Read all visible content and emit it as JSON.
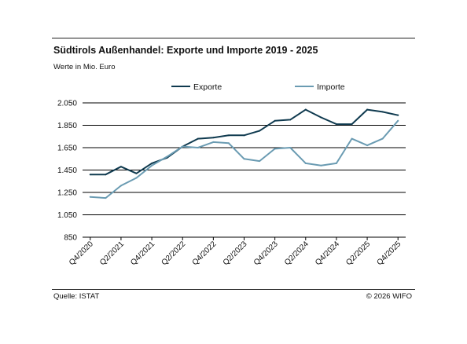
{
  "header": {
    "title": "Südtirols Außenhandel: Exporte und Importe 2019 - 2025",
    "subtitle": "Werte in Mio. Euro"
  },
  "footer": {
    "source": "Quelle: ISTAT",
    "copyright": "© 2026 WIFO"
  },
  "chart_data": {
    "type": "line",
    "title": "Südtirols Außenhandel: Exporte und Importe 2019 - 2025",
    "subtitle": "Werte in Mio. Euro",
    "xlabel": "",
    "ylabel": "",
    "ylim": [
      850,
      2050
    ],
    "y_ticks": [
      850,
      1050,
      1250,
      1450,
      1650,
      1850,
      2050
    ],
    "y_tick_labels": [
      "850",
      "1.050",
      "1.250",
      "1.450",
      "1.650",
      "1.850",
      "2.050"
    ],
    "grid": "horizontal",
    "legend_position": "top",
    "x": [
      "Q4/2020",
      "Q1/2021",
      "Q2/2021",
      "Q3/2021",
      "Q4/2021",
      "Q1/2022",
      "Q2/2022",
      "Q3/2022",
      "Q4/2022",
      "Q1/2023",
      "Q2/2023",
      "Q3/2023",
      "Q4/2023",
      "Q1/2024",
      "Q2/2024",
      "Q3/2024",
      "Q4/2024",
      "Q1/2025",
      "Q2/2025",
      "Q3/2025",
      "Q4/2025"
    ],
    "x_tick_labels": [
      "Q4/2020",
      "Q2/2021",
      "Q4/2021",
      "Q2/2022",
      "Q4/2022",
      "Q2/2023",
      "Q4/2023",
      "Q2/2024",
      "Q4/2024",
      "Q2/2025",
      "Q4/2025"
    ],
    "series": [
      {
        "name": "Exporte",
        "color": "#0f3a4f",
        "values": [
          1410,
          1410,
          1480,
          1420,
          1510,
          1560,
          1660,
          1730,
          1740,
          1760,
          1760,
          1800,
          1890,
          1900,
          1990,
          1920,
          1860,
          1860,
          1990,
          1970,
          1940
        ]
      },
      {
        "name": "Importe",
        "color": "#6a9bb2",
        "values": [
          1210,
          1200,
          1310,
          1380,
          1490,
          1570,
          1660,
          1650,
          1700,
          1690,
          1550,
          1530,
          1640,
          1650,
          1510,
          1490,
          1510,
          1730,
          1670,
          1730,
          1890
        ]
      }
    ]
  }
}
